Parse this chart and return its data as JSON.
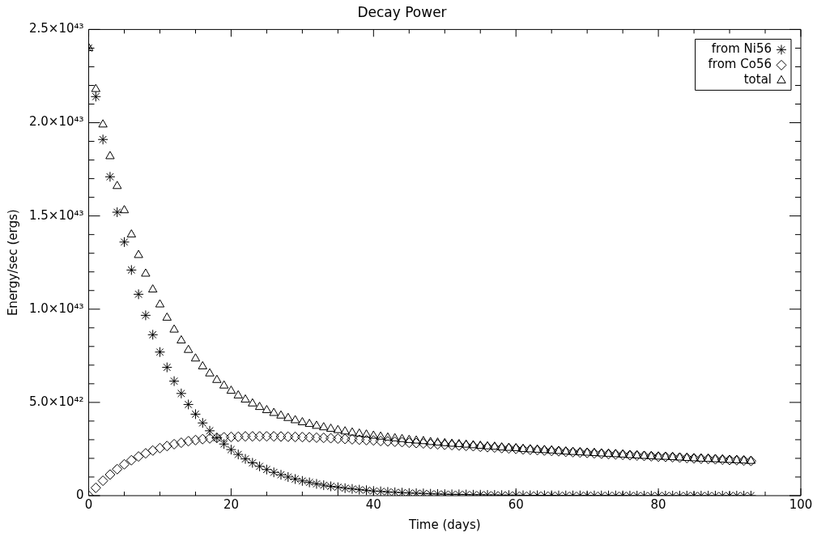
{
  "chart_data": {
    "type": "scatter",
    "title": "Decay Power",
    "xlabel": "Time (days)",
    "ylabel": "Energy/sec (ergs)",
    "x": [
      0,
      1,
      2,
      3,
      4,
      5,
      6,
      7,
      8,
      9,
      10,
      11,
      12,
      13,
      14,
      15,
      16,
      17,
      18,
      19,
      20,
      21,
      22,
      23,
      24,
      25,
      26,
      27,
      28,
      29,
      30,
      31,
      32,
      33,
      34,
      35,
      36,
      37,
      38,
      39,
      40,
      41,
      42,
      43,
      44,
      45,
      46,
      47,
      48,
      49,
      50,
      51,
      52,
      53,
      54,
      55,
      56,
      57,
      58,
      59,
      60,
      61,
      62,
      63,
      64,
      65,
      66,
      67,
      68,
      69,
      70,
      71,
      72,
      73,
      74,
      75,
      76,
      77,
      78,
      79,
      80,
      81,
      82,
      83,
      84,
      85,
      86,
      87,
      88,
      89,
      90,
      91,
      92,
      93
    ],
    "series": [
      {
        "name": "from Ni56",
        "color": "#000000",
        "marker": "cross",
        "values": [
          2.4e+43,
          2.14e+43,
          1.91e+43,
          1.71e+43,
          1.52e+43,
          1.36e+43,
          1.21e+43,
          1.08e+43,
          9.67e+42,
          8.63e+42,
          7.7e+42,
          6.88e+42,
          6.14e+42,
          5.48e+42,
          4.89e+42,
          4.37e+42,
          3.9e+42,
          3.48e+42,
          3.1e+42,
          2.77e+42,
          2.47e+42,
          2.21e+42,
          1.97e+42,
          1.76e+42,
          1.57e+42,
          1.4e+42,
          1.25e+42,
          1.12e+42,
          1e+42,
          8.9e+41,
          7.9e+41,
          7.1e+41,
          6.3e+41,
          5.6e+41,
          5e+41,
          4.5e+41,
          4e+41,
          3.6e+41,
          3.2e+41,
          2.9e+41,
          2.5e+41,
          2.3e+41,
          2e+41,
          1.8e+41,
          1.6e+41,
          1.4e+41,
          1.3e+41,
          1.2e+41,
          1e+41,
          9e+40,
          8e+40,
          7e+40,
          7e+40,
          6e+40,
          5e+40,
          5e+40,
          4e+40,
          4e+40,
          3e+40,
          3e+40,
          3e+40,
          2e+40,
          2e+40,
          2e+40,
          2e+40,
          2e+40,
          1e+40,
          1e+40,
          1e+40,
          1e+40,
          1e+40,
          1e+40,
          1e+40,
          1e+40,
          1e+40,
          1e+40,
          0,
          0,
          0,
          0,
          0,
          0,
          0,
          0,
          0,
          0,
          0,
          0,
          0,
          0,
          0,
          0,
          0,
          0
        ]
      },
      {
        "name": "from Co56",
        "color": "#000000",
        "marker": "diamond",
        "values": [
          0,
          4.2e+41,
          8e+41,
          1.13e+42,
          1.42e+42,
          1.68e+42,
          1.9e+42,
          2.1e+42,
          2.27e+42,
          2.42e+42,
          2.55e+42,
          2.66e+42,
          2.76e+42,
          2.84e+42,
          2.92e+42,
          2.98e+42,
          3.03e+42,
          3.07e+42,
          3.1e+42,
          3.13e+42,
          3.15e+42,
          3.16e+42,
          3.18e+42,
          3.18e+42,
          3.18e+42,
          3.18e+42,
          3.18e+42,
          3.17e+42,
          3.16e+42,
          3.15e+42,
          3.14e+42,
          3.13e+42,
          3.11e+42,
          3.1e+42,
          3.08e+42,
          3.06e+42,
          3.04e+42,
          3.02e+42,
          3e+42,
          2.98e+42,
          2.96e+42,
          2.93e+42,
          2.91e+42,
          2.89e+42,
          2.87e+42,
          2.84e+42,
          2.82e+42,
          2.8e+42,
          2.77e+42,
          2.75e+42,
          2.73e+42,
          2.71e+42,
          2.69e+42,
          2.67e+42,
          2.65e+42,
          2.62e+42,
          2.6e+42,
          2.58e+42,
          2.55e+42,
          2.53e+42,
          2.51e+42,
          2.48e+42,
          2.46e+42,
          2.44e+42,
          2.42e+42,
          2.4e+42,
          2.38e+42,
          2.35e+42,
          2.33e+42,
          2.31e+42,
          2.29e+42,
          2.27e+42,
          2.25e+42,
          2.23e+42,
          2.21e+42,
          2.19e+42,
          2.17e+42,
          2.15e+42,
          2.13e+42,
          2.11e+42,
          2.09e+42,
          2.08e+42,
          2.06e+42,
          2.04e+42,
          2.02e+42,
          2e+42,
          1.98e+42,
          1.97e+42,
          1.95e+42,
          1.93e+42,
          1.91e+42,
          1.9e+42,
          1.88e+42,
          1.86e+42
        ]
      },
      {
        "name": "total",
        "color": "#000000",
        "marker": "triangle",
        "values": [
          2.4e+43,
          2.18e+43,
          1.99e+43,
          1.82e+43,
          1.66e+43,
          1.53e+43,
          1.4e+43,
          1.29e+43,
          1.19e+43,
          1.105e+43,
          1.025e+43,
          9.54e+42,
          8.9e+42,
          8.32e+42,
          7.81e+42,
          7.35e+42,
          6.93e+42,
          6.55e+42,
          6.2e+42,
          5.9e+42,
          5.62e+42,
          5.37e+42,
          5.15e+42,
          4.94e+42,
          4.75e+42,
          4.58e+42,
          4.43e+42,
          4.29e+42,
          4.16e+42,
          4.04e+42,
          3.93e+42,
          3.84e+42,
          3.74e+42,
          3.66e+42,
          3.58e+42,
          3.51e+42,
          3.44e+42,
          3.38e+42,
          3.32e+42,
          3.27e+42,
          3.21e+42,
          3.16e+42,
          3.11e+42,
          3.07e+42,
          3.03e+42,
          2.98e+42,
          2.95e+42,
          2.92e+42,
          2.87e+42,
          2.84e+42,
          2.81e+42,
          2.78e+42,
          2.76e+42,
          2.73e+42,
          2.7e+42,
          2.67e+42,
          2.64e+42,
          2.62e+42,
          2.58e+42,
          2.56e+42,
          2.54e+42,
          2.5e+42,
          2.48e+42,
          2.46e+42,
          2.44e+42,
          2.42e+42,
          2.39e+42,
          2.36e+42,
          2.34e+42,
          2.32e+42,
          2.3e+42,
          2.28e+42,
          2.26e+42,
          2.24e+42,
          2.22e+42,
          2.2e+42,
          2.17e+42,
          2.15e+42,
          2.13e+42,
          2.11e+42,
          2.09e+42,
          2.08e+42,
          2.06e+42,
          2.04e+42,
          2.02e+42,
          2e+42,
          1.98e+42,
          1.97e+42,
          1.95e+42,
          1.93e+42,
          1.91e+42,
          1.9e+42,
          1.88e+42,
          1.86e+42
        ]
      }
    ],
    "xlim": [
      0,
      100
    ],
    "xticks": [
      0,
      {
        "value": 5,
        "label": null
      },
      {
        "value": 10,
        "label": null
      },
      {
        "value": 15,
        "label": null
      },
      20,
      {
        "value": 25,
        "label": null
      },
      {
        "value": 30,
        "label": null
      },
      {
        "value": 35,
        "label": null
      },
      40,
      {
        "value": 45,
        "label": null
      },
      {
        "value": 50,
        "label": null
      },
      {
        "value": 55,
        "label": null
      },
      60,
      {
        "value": 65,
        "label": null
      },
      {
        "value": 70,
        "label": null
      },
      {
        "value": 75,
        "label": null
      },
      80,
      {
        "value": 85,
        "label": null
      },
      {
        "value": 90,
        "label": null
      },
      {
        "value": 95,
        "label": null
      },
      100
    ],
    "ylim": [
      0,
      2.5e+43
    ],
    "yticks": [
      0,
      {
        "value": 1e+42,
        "label": null
      },
      {
        "value": 2e+42,
        "label": null
      },
      {
        "value": 3e+42,
        "label": null
      },
      {
        "value": 4e+42,
        "label": null
      },
      {
        "value": 5e+42,
        "label": "5.0×10⁴²"
      },
      {
        "value": 6e+42,
        "label": null
      },
      {
        "value": 7e+42,
        "label": null
      },
      {
        "value": 8e+42,
        "label": null
      },
      {
        "value": 9e+42,
        "label": null
      },
      {
        "value": 1e+43,
        "label": "1.0×10⁴³"
      },
      {
        "value": 1.1e+43,
        "label": null
      },
      {
        "value": 1.2e+43,
        "label": null
      },
      {
        "value": 1.3e+43,
        "label": null
      },
      {
        "value": 1.4e+43,
        "label": null
      },
      {
        "value": 1.5e+43,
        "label": "1.5×10⁴³"
      },
      {
        "value": 1.6e+43,
        "label": null
      },
      {
        "value": 1.7e+43,
        "label": null
      },
      {
        "value": 1.8e+43,
        "label": null
      },
      {
        "value": 1.9e+43,
        "label": null
      },
      {
        "value": 2e+43,
        "label": "2.0×10⁴³"
      },
      {
        "value": 2.1e+43,
        "label": null
      },
      {
        "value": 2.2e+43,
        "label": null
      },
      {
        "value": 2.3e+43,
        "label": null
      },
      {
        "value": 2.4e+43,
        "label": null
      },
      {
        "value": 2.5e+43,
        "label": "2.5×10⁴³"
      }
    ],
    "grid": false,
    "legend": "top right"
  }
}
